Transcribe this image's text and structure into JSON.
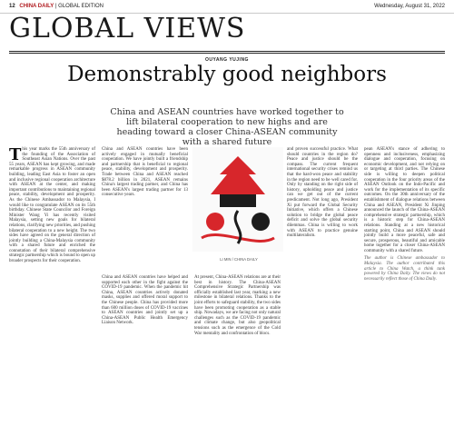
{
  "header": {
    "page_number": "12",
    "publication": "CHINA DAILY",
    "section_tag": "GLOBAL EDITION",
    "date": "Wednesday, August 31, 2022"
  },
  "section_title": "GLOBAL VIEWS",
  "article": {
    "byline": "OUYANG YUJING",
    "headline": "Demonstrably good neighbors",
    "standfirst": "China and ASEAN countries have worked together to lift bilateral cooperation to new highs and are heading toward a closer China-ASEAN community with a shared future",
    "col1": "his year marks the 55th anniversary of the founding of the Association of Southeast Asian Nations. Over the past 55 years, ASEAN has kept growing, and made remarkable progress in ASEAN community building, leading East Asia to foster an open and inclusive regional cooperation architecture with ASEAN at the center, and making important contributions to maintaining regional peace, stability, development and prosperity. As the Chinese Ambassador to Malaysia, I would like to congratulate ASEAN on its 55th birthday. Chinese State Councilor and Foreign Minister Wang Yi has recently visited Malaysia, setting new goals for bilateral relations, clarifying new priorities, and pushing bilateral cooperation to a new height. The two sides have agreed on the general direction of jointly building a China-Malaysia community with a shared future and enriched the connotation of their bilateral comprehensive strategic partnership which is bound to open up broader prospects for their cooperation.",
    "col2": "China and ASEAN countries have been actively engaged in mutually beneficial cooperation. We have jointly built a friendship and partnership that is beneficial to regional peace, stability, development and prosperity. Trade between China and ASEAN reached $878.2 billion in 2021, ASEAN remains China's largest trading partner, and China has been ASEAN's largest trading partner for 13 consecutive years.",
    "col3": "China and ASEAN countries have helped and supported each other in the fight against the COVID-19 pandemic. When the pandemic hit China, ASEAN countries actively donated masks, supplies and offered moral support to the Chinese people. China has provided more than 600 million doses of COVID-19 vaccines to ASEAN countries and jointly set up a China-ASEAN Public Health Emergency Liaison Network.",
    "col4": "At present, China-ASEAN relations are at their best in history. The China-ASEAN Comprehensive Strategic Partnership was officially established last year, marking a new milestone in bilateral relations. Thanks to the joint efforts to safeguard stability, the two sides have been promoting cooperation as a stable ship. Nowadays, we are facing not only natural challenges such as the COVID-19 pandemic and climate change, but also geopolitical tensions such as the emergence of the Cold War mentality and confrontation of blocs.",
    "col5": "and proven successful practice. What should countries in the region do? Peace and justice should be the compass. The current frequent international security crises remind us that the hard-won peace and stability in the region need to be well cared for. Only by standing on the right side of history, upholding peace and justice can we get out of the current predicament. Not long ago, President Xi put forward the Global Security Initiative, which offers a Chinese solution to bridge the global peace deficit and solve the global security dilemmas. China is willing to work with ASEAN to practice genuine multilateralism.",
    "col6": "pean ASEAN's stance of adhering to openness and inclusiveness, emphasizing dialogue and cooperation, focusing on economic development, and not relying on or targeting at third parties. The Chinese side is willing to deepen political cooperation in the four priority areas of the ASEAN Outlook on the Indo-Pacific and work for the implementation of its specific outcomes. On the 30th anniversary of the establishment of dialogue relations between China and ASEAN, President Xi Jinping announced the launch of the China-ASEAN comprehensive strategic partnership, which is a historic step for China-ASEAN relations. Standing at a new historical starting point, China and ASEAN should jointly build a more peaceful, safe and secure, prosperous, beautiful and amicable home together for a closer China-ASEAN community with a shared future.",
    "author_note": "The author is Chinese ambassador to Malaysia. The author contributed this article to China Watch, a think tank powered by China Daily. The views do not necessarily reflect those of China Daily.",
    "illustration_caption": "LI MIN / CHINA DAILY"
  }
}
